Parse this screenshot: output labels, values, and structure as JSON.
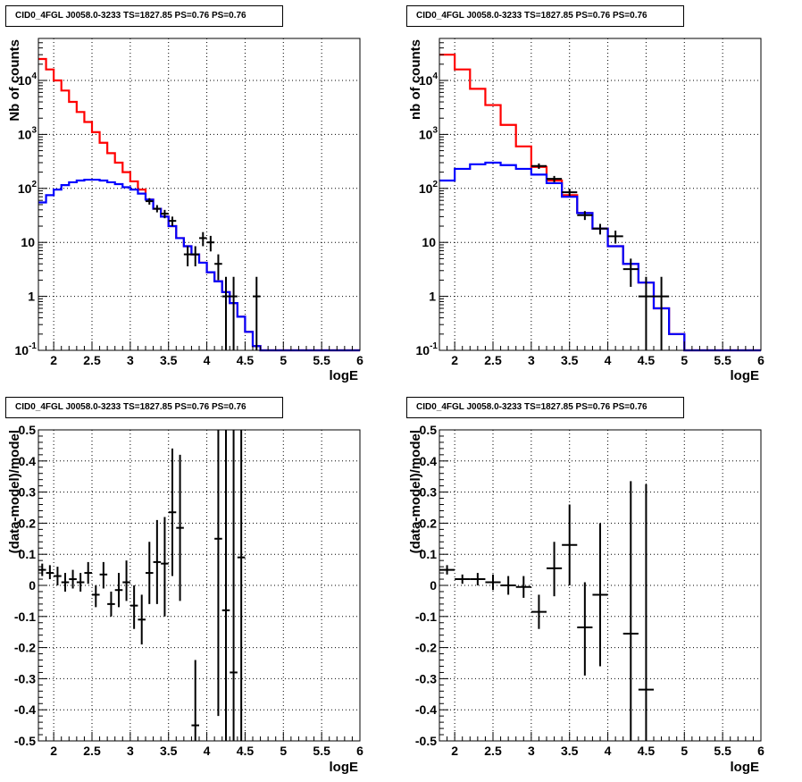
{
  "chart_data": [
    {
      "type": "step-histogram",
      "title": "CID0_4FGL J0058.0-3233 TS=1827.85 PS=0.76 PS=0.76",
      "xlabel": "logE",
      "ylabel": "Nb of counts",
      "xlim": [
        1.8,
        6.0
      ],
      "ylim": [
        0.1,
        60000
      ],
      "yscale": "log",
      "grid": true,
      "xticks": [
        "2",
        "2.5",
        "3",
        "3.5",
        "4",
        "4.5",
        "5",
        "5.5",
        "6"
      ],
      "yticks": [
        "10^-1",
        "1",
        "10",
        "10^2",
        "10^3",
        "10^4"
      ],
      "bin_edges": [
        1.8,
        1.9,
        2.0,
        2.1,
        2.2,
        2.3,
        2.4,
        2.5,
        2.6,
        2.7,
        2.8,
        2.9,
        3.0,
        3.1,
        3.2,
        3.3,
        3.4,
        3.5,
        3.6,
        3.7,
        3.8,
        3.9,
        4.0,
        4.1,
        4.2,
        4.3,
        4.4,
        4.5,
        4.6,
        4.7,
        4.8,
        4.9,
        5.0,
        5.1,
        5.2,
        5.3,
        5.4,
        5.5,
        5.6,
        5.7,
        5.8,
        5.9,
        6.0
      ],
      "series": [
        {
          "color": "#ff0000",
          "values": [
            25000,
            16000,
            10000,
            6500,
            4000,
            2600,
            1700,
            1100,
            700,
            450,
            300,
            200,
            135,
            95,
            62,
            42,
            30,
            20,
            12,
            8.5,
            6,
            4.2,
            2.8,
            1.9,
            1.2,
            0.75,
            0.42,
            0.22,
            0.12,
            0.1,
            0.1,
            0.1,
            0.1,
            0.1,
            0.1,
            0.1,
            0.1,
            0.1,
            0.1,
            0.1,
            0.1,
            0.1
          ]
        },
        {
          "color": "#0000ff",
          "values": [
            55,
            75,
            95,
            115,
            130,
            140,
            145,
            145,
            140,
            130,
            120,
            105,
            95,
            80,
            62,
            42,
            30,
            20,
            12,
            8.5,
            6,
            4.2,
            2.8,
            1.9,
            1.2,
            0.75,
            0.42,
            0.22,
            0.12,
            0.1,
            0.1,
            0.1,
            0.1,
            0.1,
            0.1,
            0.1,
            0.1,
            0.1,
            0.1,
            0.1,
            0.1,
            0.1
          ]
        }
      ],
      "points": [
        {
          "x": 3.25,
          "y": 58,
          "xerr": 0.05,
          "ylo": 50,
          "yhi": 66
        },
        {
          "x": 3.35,
          "y": 42,
          "xerr": 0.05,
          "ylo": 36,
          "yhi": 49
        },
        {
          "x": 3.45,
          "y": 34,
          "xerr": 0.05,
          "ylo": 28,
          "yhi": 40
        },
        {
          "x": 3.55,
          "y": 25,
          "xerr": 0.05,
          "ylo": 20,
          "yhi": 30
        },
        {
          "x": 3.75,
          "y": 6,
          "xerr": 0.05,
          "ylo": 3.6,
          "yhi": 8.5
        },
        {
          "x": 3.85,
          "y": 6,
          "xerr": 0.05,
          "ylo": 3.6,
          "yhi": 8.5
        },
        {
          "x": 3.95,
          "y": 12,
          "xerr": 0.05,
          "ylo": 8.5,
          "yhi": 15.5
        },
        {
          "x": 4.05,
          "y": 10,
          "xerr": 0.05,
          "ylo": 6.8,
          "yhi": 13.2
        },
        {
          "x": 4.15,
          "y": 4,
          "xerr": 0.05,
          "ylo": 2,
          "yhi": 6
        },
        {
          "x": 4.25,
          "y": 1,
          "xerr": 0.05,
          "ylo": 0.1,
          "yhi": 2.3
        },
        {
          "x": 4.35,
          "y": 1,
          "xerr": 0.05,
          "ylo": 0.1,
          "yhi": 2.3
        },
        {
          "x": 4.65,
          "y": 1,
          "xerr": 0.05,
          "ylo": 0.1,
          "yhi": 2.3
        }
      ]
    },
    {
      "type": "step-histogram",
      "title": "CID0_4FGL J0058.0-3233 TS=1827.85 PS=0.76 PS=0.76",
      "xlabel": "logE",
      "ylabel": "nb of counts",
      "xlim": [
        1.8,
        6.0
      ],
      "ylim": [
        0.1,
        60000
      ],
      "yscale": "log",
      "grid": true,
      "xticks": [
        "2",
        "2.5",
        "3",
        "3.5",
        "4",
        "4.5",
        "5",
        "5.5",
        "6"
      ],
      "yticks": [
        "10^-1",
        "1",
        "10",
        "10^2",
        "10^3",
        "10^4"
      ],
      "bin_edges": [
        1.8,
        2.0,
        2.2,
        2.4,
        2.6,
        2.8,
        3.0,
        3.2,
        3.4,
        3.6,
        3.8,
        4.0,
        4.2,
        4.4,
        4.6,
        4.8,
        5.0,
        5.2,
        5.4,
        5.6,
        5.8,
        6.0
      ],
      "series": [
        {
          "color": "#ff0000",
          "values": [
            30000,
            16000,
            7000,
            3500,
            1500,
            600,
            250,
            140,
            75,
            35,
            18,
            8.5,
            4,
            1.8,
            0.6,
            0.2,
            0.1,
            0.1,
            0.1,
            0.1,
            0.1
          ]
        },
        {
          "color": "#0000ff",
          "values": [
            140,
            230,
            280,
            300,
            270,
            230,
            180,
            125,
            70,
            35,
            18,
            8.5,
            4,
            1.8,
            0.6,
            0.2,
            0.1,
            0.1,
            0.1,
            0.1,
            0.1
          ]
        }
      ],
      "points": [
        {
          "x": 3.1,
          "y": 260,
          "xerr": 0.1,
          "ylo": 230,
          "yhi": 290
        },
        {
          "x": 3.3,
          "y": 150,
          "xerr": 0.1,
          "ylo": 130,
          "yhi": 170
        },
        {
          "x": 3.5,
          "y": 85,
          "xerr": 0.1,
          "ylo": 72,
          "yhi": 98
        },
        {
          "x": 3.7,
          "y": 32,
          "xerr": 0.1,
          "ylo": 26,
          "yhi": 38
        },
        {
          "x": 3.9,
          "y": 18,
          "xerr": 0.1,
          "ylo": 14,
          "yhi": 22
        },
        {
          "x": 4.1,
          "y": 13,
          "xerr": 0.1,
          "ylo": 9.5,
          "yhi": 16.5
        },
        {
          "x": 4.3,
          "y": 3.2,
          "xerr": 0.1,
          "ylo": 1.5,
          "yhi": 5
        },
        {
          "x": 4.5,
          "y": 1,
          "xerr": 0.1,
          "ylo": 0.1,
          "yhi": 2.3
        },
        {
          "x": 4.7,
          "y": 1,
          "xerr": 0.1,
          "ylo": 0.1,
          "yhi": 2.3
        }
      ]
    },
    {
      "type": "scatter",
      "title": "CID0_4FGL J0058.0-3233 TS=1827.85 PS=0.76 PS=0.76",
      "xlabel": "logE",
      "ylabel": "(data-model)/model",
      "xlim": [
        1.8,
        6.0
      ],
      "ylim": [
        -0.5,
        0.5
      ],
      "grid": true,
      "xticks": [
        "2",
        "2.5",
        "3",
        "3.5",
        "4",
        "4.5",
        "5",
        "5.5",
        "6"
      ],
      "yticks": [
        "-0.5",
        "-0.4",
        "-0.3",
        "-0.2",
        "-0.1",
        "0",
        "0.1",
        "0.2",
        "0.3",
        "0.4",
        "0.5"
      ],
      "points": [
        {
          "x": 1.85,
          "y": 0.05,
          "xerr": 0.05,
          "ylo": 0.03,
          "yhi": 0.07
        },
        {
          "x": 1.95,
          "y": 0.04,
          "xerr": 0.05,
          "ylo": 0.02,
          "yhi": 0.065
        },
        {
          "x": 2.05,
          "y": 0.03,
          "xerr": 0.05,
          "ylo": 0.0,
          "yhi": 0.06
        },
        {
          "x": 2.15,
          "y": 0.01,
          "xerr": 0.05,
          "ylo": -0.02,
          "yhi": 0.04
        },
        {
          "x": 2.25,
          "y": 0.02,
          "xerr": 0.05,
          "ylo": -0.01,
          "yhi": 0.05
        },
        {
          "x": 2.35,
          "y": 0.01,
          "xerr": 0.05,
          "ylo": -0.02,
          "yhi": 0.04
        },
        {
          "x": 2.45,
          "y": 0.04,
          "xerr": 0.05,
          "ylo": 0.005,
          "yhi": 0.075
        },
        {
          "x": 2.55,
          "y": -0.03,
          "xerr": 0.05,
          "ylo": -0.07,
          "yhi": 0.0
        },
        {
          "x": 2.65,
          "y": 0.035,
          "xerr": 0.05,
          "ylo": -0.01,
          "yhi": 0.075
        },
        {
          "x": 2.75,
          "y": -0.06,
          "xerr": 0.05,
          "ylo": -0.1,
          "yhi": -0.02
        },
        {
          "x": 2.85,
          "y": -0.015,
          "xerr": 0.05,
          "ylo": -0.07,
          "yhi": 0.04
        },
        {
          "x": 2.95,
          "y": 0.01,
          "xerr": 0.05,
          "ylo": -0.05,
          "yhi": 0.08
        },
        {
          "x": 3.05,
          "y": -0.065,
          "xerr": 0.05,
          "ylo": -0.14,
          "yhi": 0.0
        },
        {
          "x": 3.15,
          "y": -0.11,
          "xerr": 0.05,
          "ylo": -0.19,
          "yhi": -0.03
        },
        {
          "x": 3.25,
          "y": 0.04,
          "xerr": 0.05,
          "ylo": -0.06,
          "yhi": 0.14
        },
        {
          "x": 3.35,
          "y": 0.075,
          "xerr": 0.05,
          "ylo": -0.06,
          "yhi": 0.21
        },
        {
          "x": 3.45,
          "y": 0.07,
          "xerr": 0.05,
          "ylo": -0.1,
          "yhi": 0.22
        },
        {
          "x": 3.55,
          "y": 0.235,
          "xerr": 0.05,
          "ylo": 0.03,
          "yhi": 0.44
        },
        {
          "x": 3.65,
          "y": 0.185,
          "xerr": 0.05,
          "ylo": -0.05,
          "yhi": 0.42
        },
        {
          "x": 3.85,
          "y": -0.45,
          "xerr": 0.05,
          "ylo": -0.5,
          "yhi": -0.24
        },
        {
          "x": 4.15,
          "y": 0.15,
          "xerr": 0.05,
          "ylo": -0.42,
          "yhi": 0.5
        },
        {
          "x": 4.25,
          "y": -0.08,
          "xerr": 0.05,
          "ylo": -0.5,
          "yhi": 0.5
        },
        {
          "x": 4.35,
          "y": -0.28,
          "xerr": 0.05,
          "ylo": -0.5,
          "yhi": 0.5
        },
        {
          "x": 4.45,
          "y": 0.09,
          "xerr": 0.05,
          "ylo": -0.5,
          "yhi": 0.5
        }
      ]
    },
    {
      "type": "scatter",
      "title": "CID0_4FGL J0058.0-3233 TS=1827.85 PS=0.76 PS=0.76",
      "xlabel": "logE",
      "ylabel": "(data-model)/model",
      "xlim": [
        1.8,
        6.0
      ],
      "ylim": [
        -0.5,
        0.5
      ],
      "grid": true,
      "xticks": [
        "2",
        "2.5",
        "3",
        "3.5",
        "4",
        "4.5",
        "5",
        "5.5",
        "6"
      ],
      "yticks": [
        "-0.5",
        "-0.4",
        "-0.3",
        "-0.2",
        "-0.1",
        "0",
        "0.1",
        "0.2",
        "0.3",
        "0.4",
        "0.5"
      ],
      "points": [
        {
          "x": 1.9,
          "y": 0.05,
          "xerr": 0.1,
          "ylo": 0.035,
          "yhi": 0.065
        },
        {
          "x": 2.1,
          "y": 0.02,
          "xerr": 0.1,
          "ylo": 0.005,
          "yhi": 0.035
        },
        {
          "x": 2.3,
          "y": 0.02,
          "xerr": 0.1,
          "ylo": 0.0,
          "yhi": 0.04
        },
        {
          "x": 2.5,
          "y": 0.01,
          "xerr": 0.1,
          "ylo": -0.015,
          "yhi": 0.035
        },
        {
          "x": 2.7,
          "y": 0.0,
          "xerr": 0.1,
          "ylo": -0.03,
          "yhi": 0.03
        },
        {
          "x": 2.9,
          "y": -0.005,
          "xerr": 0.1,
          "ylo": -0.04,
          "yhi": 0.03
        },
        {
          "x": 3.1,
          "y": -0.085,
          "xerr": 0.1,
          "ylo": -0.14,
          "yhi": -0.03
        },
        {
          "x": 3.3,
          "y": 0.055,
          "xerr": 0.1,
          "ylo": -0.035,
          "yhi": 0.14
        },
        {
          "x": 3.5,
          "y": 0.13,
          "xerr": 0.1,
          "ylo": 0.0,
          "yhi": 0.26
        },
        {
          "x": 3.7,
          "y": -0.135,
          "xerr": 0.1,
          "ylo": -0.29,
          "yhi": 0.01
        },
        {
          "x": 3.9,
          "y": -0.03,
          "xerr": 0.1,
          "ylo": -0.26,
          "yhi": 0.2
        },
        {
          "x": 4.3,
          "y": -0.155,
          "xerr": 0.1,
          "ylo": -0.5,
          "yhi": 0.335
        },
        {
          "x": 4.5,
          "y": -0.335,
          "xerr": 0.1,
          "ylo": -0.5,
          "yhi": 0.325
        }
      ]
    }
  ]
}
